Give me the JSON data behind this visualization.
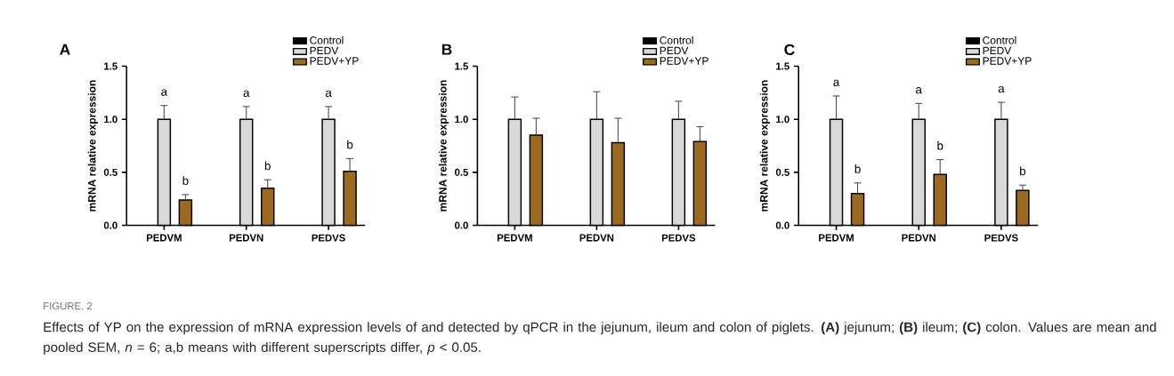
{
  "chart_data": [
    {
      "type": "bar",
      "title": "A",
      "ylabel": "mRNA relative expression",
      "categories": [
        "PEDVM",
        "PEDVN",
        "PEDVS"
      ],
      "ylim": [
        0,
        1.5
      ],
      "yticks": [
        {
          "value": 0,
          "label": "0.0"
        },
        {
          "value": 0.5,
          "label": "0.5"
        },
        {
          "value": 1,
          "label": "1.0"
        },
        {
          "value": 1.5,
          "label": "1.5"
        }
      ],
      "legend": "top right",
      "series": [
        {
          "name": "Control",
          "color": "#000000",
          "values": [
            null,
            null,
            null
          ]
        },
        {
          "name": "PEDV",
          "color": "#d9d9d9",
          "values": [
            1,
            1,
            1
          ],
          "errors": [
            [
              1,
              1.13
            ],
            [
              1,
              1.12
            ],
            [
              1,
              1.12
            ]
          ]
        },
        {
          "name": "PEDV+YP",
          "color": "#9b6a1e",
          "values": [
            0.24,
            0.35,
            0.51
          ],
          "errors": [
            [
              0.24,
              0.29
            ],
            [
              0.35,
              0.43
            ],
            [
              0.51,
              0.63
            ]
          ]
        }
      ],
      "annotations": [
        "a",
        "b",
        "a",
        "b",
        "a",
        "b",
        "FIGURE. 2",
        "Effects of YP on the expression of mRNA expression levels of and detected by qPCR in the jejunum, ileum and colon of piglets. **(A)** jejunum; **(B)** ileum; **(C)** colon. Values are mean and pooled SEM, *n* = 6; a,b means with different superscripts differ, *p* < 0.05."
      ]
    },
    {
      "type": "bar",
      "title": "B",
      "ylabel": "mRNA relative expression",
      "categories": [
        "PEDVM",
        "PEDVN",
        "PEDVS"
      ],
      "ylim": [
        0,
        1.5
      ],
      "yticks": [
        {
          "value": 0,
          "label": "0.0"
        },
        {
          "value": 0.5,
          "label": "0.5"
        },
        {
          "value": 1,
          "label": "1.0"
        },
        {
          "value": 1.5,
          "label": "1.5"
        }
      ],
      "legend": "top right",
      "series": [
        {
          "name": "Control",
          "color": "#000000",
          "values": [
            null,
            null,
            null
          ]
        },
        {
          "name": "PEDV",
          "color": "#d9d9d9",
          "values": [
            1,
            1,
            1
          ],
          "errors": [
            [
              1,
              1.21
            ],
            [
              1,
              1.26
            ],
            [
              1,
              1.17
            ]
          ]
        },
        {
          "name": "PEDV+YP",
          "color": "#9b6a1e",
          "values": [
            0.85,
            0.78,
            0.79
          ],
          "errors": [
            [
              0.85,
              1.01
            ],
            [
              0.78,
              1.01
            ],
            [
              0.79,
              0.93
            ]
          ]
        }
      ]
    },
    {
      "type": "bar",
      "title": "C",
      "ylabel": "mRNA relative expression",
      "categories": [
        "PEDVM",
        "PEDVN",
        "PEDVS"
      ],
      "ylim": [
        0,
        1.5
      ],
      "yticks": [
        {
          "value": 0,
          "label": "0.0"
        },
        {
          "value": 0.5,
          "label": "0.5"
        },
        {
          "value": 1,
          "label": "1.0"
        },
        {
          "value": 1.5,
          "label": "1.5"
        }
      ],
      "legend": "top right",
      "series": [
        {
          "name": "Control",
          "color": "#000000",
          "values": [
            null,
            null,
            null
          ]
        },
        {
          "name": "PEDV",
          "color": "#d9d9d9",
          "values": [
            1,
            1,
            1
          ],
          "errors": [
            [
              1,
              1.22
            ],
            [
              1,
              1.15
            ],
            [
              1,
              1.16
            ]
          ]
        },
        {
          "name": "PEDV+YP",
          "color": "#9b6a1e",
          "values": [
            0.3,
            0.48,
            0.33
          ],
          "errors": [
            [
              0.3,
              0.4
            ],
            [
              0.48,
              0.62
            ],
            [
              0.33,
              0.38
            ]
          ]
        }
      ],
      "annotations": [
        "a",
        "b",
        "a",
        "b",
        "a",
        "b"
      ]
    }
  ]
}
